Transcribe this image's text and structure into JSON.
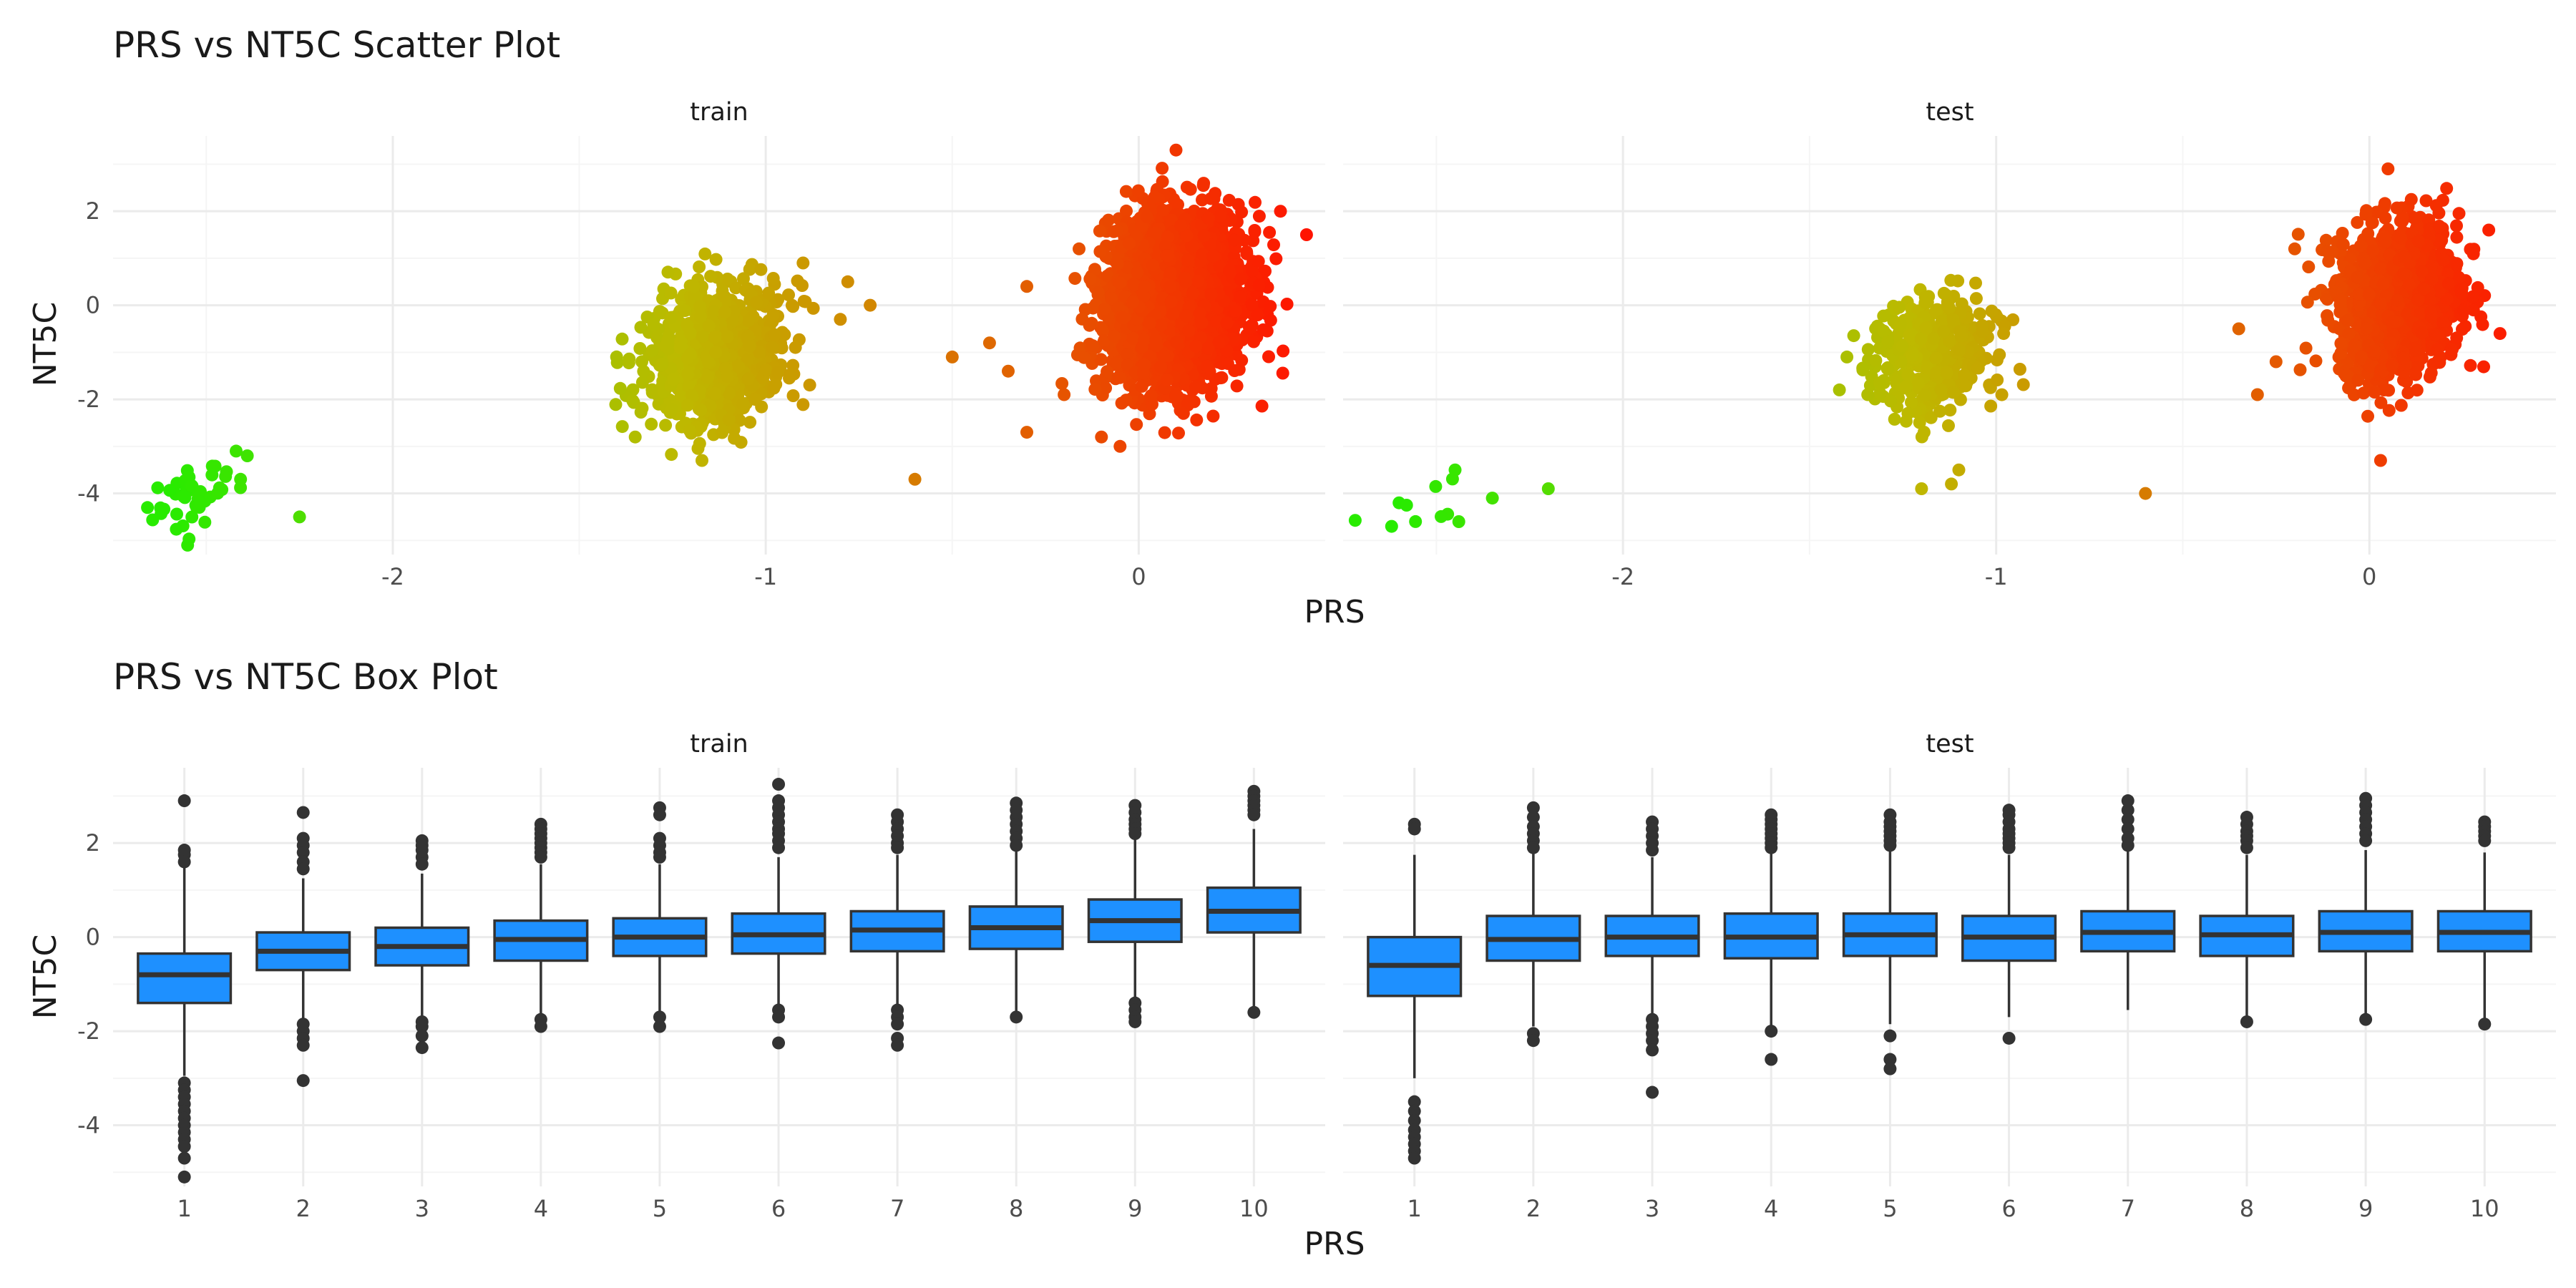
{
  "colors": {
    "background": "#ffffff",
    "grid_major": "#ebebeb",
    "grid_minor": "#f5f5f5",
    "text": "#1a1a1a",
    "tick_text": "#4d4d4d",
    "box_fill": "#1e90ff",
    "box_line": "#333333",
    "gradient_low": "#00ff00",
    "gradient_high": "#ff0000"
  },
  "chart_data": [
    {
      "type": "scatter",
      "title": "PRS vs NT5C Scatter Plot",
      "xlabel": "PRS",
      "ylabel": "NT5C",
      "xlim": [
        -2.75,
        0.5
      ],
      "ylim": [
        -5.3,
        3.6
      ],
      "x_ticks": [
        -2,
        -1,
        0
      ],
      "x_tick_labels": [
        "-2",
        "-1",
        "0"
      ],
      "y_ticks": [
        2,
        0,
        -2,
        -4
      ],
      "y_tick_labels": [
        "2",
        "0",
        "-2",
        "-4"
      ],
      "grid": true,
      "color_encoding": "PRS gradient, green (low) to red (high)",
      "panels": [
        {
          "name": "train",
          "clusters": [
            {
              "center_x": -2.53,
              "center_y": -4.05,
              "spread_x": 0.06,
              "spread_y": 0.32,
              "count": 45,
              "rx": 0.14,
              "ry": 0.95
            },
            {
              "center_x": -1.13,
              "center_y": -1.05,
              "spread_x": 0.09,
              "spread_y": 0.7,
              "count": 900,
              "rx": 0.28,
              "ry": 2.2
            },
            {
              "center_x": 0.1,
              "center_y": 0.15,
              "spread_x": 0.09,
              "spread_y": 0.85,
              "count": 2600,
              "rx": 0.32,
              "ry": 3.1
            }
          ],
          "outliers": [
            {
              "x": -2.25,
              "y": -4.5
            },
            {
              "x": -2.39,
              "y": -3.2
            },
            {
              "x": -2.42,
              "y": -3.1
            },
            {
              "x": -2.55,
              "y": -5.1
            },
            {
              "x": -0.9,
              "y": 0.9
            },
            {
              "x": -0.78,
              "y": 0.5
            },
            {
              "x": -0.72,
              "y": 0.0
            },
            {
              "x": -0.8,
              "y": -0.3
            },
            {
              "x": -0.98,
              "y": -0.2
            },
            {
              "x": -1.35,
              "y": -2.8
            },
            {
              "x": -0.6,
              "y": -3.7
            },
            {
              "x": -0.3,
              "y": -2.7
            },
            {
              "x": -0.4,
              "y": -0.8
            },
            {
              "x": -0.35,
              "y": -1.4
            },
            {
              "x": -0.2,
              "y": -1.9
            },
            {
              "x": -0.5,
              "y": -1.1
            },
            {
              "x": 0.45,
              "y": 1.5
            },
            {
              "x": 0.38,
              "y": 2.0
            },
            {
              "x": 0.1,
              "y": 3.3
            },
            {
              "x": -0.05,
              "y": -3.0
            },
            {
              "x": -0.1,
              "y": -2.8
            },
            {
              "x": 0.12,
              "y": -2.3
            },
            {
              "x": -0.3,
              "y": 0.4
            },
            {
              "x": -0.16,
              "y": 1.2
            }
          ]
        },
        {
          "name": "test",
          "clusters": [
            {
              "center_x": -2.5,
              "center_y": -4.2,
              "spread_x": 0.1,
              "spread_y": 0.35,
              "count": 6,
              "rx": 0.3,
              "ry": 0.8
            },
            {
              "center_x": -1.17,
              "center_y": -1.1,
              "spread_x": 0.08,
              "spread_y": 0.65,
              "count": 420,
              "rx": 0.25,
              "ry": 2.0
            },
            {
              "center_x": 0.08,
              "center_y": 0.15,
              "spread_x": 0.08,
              "spread_y": 0.8,
              "count": 1250,
              "rx": 0.3,
              "ry": 2.7
            }
          ],
          "outliers": [
            {
              "x": -2.62,
              "y": -4.7
            },
            {
              "x": -2.6,
              "y": -4.2
            },
            {
              "x": -2.58,
              "y": -4.25
            },
            {
              "x": -2.45,
              "y": -3.5
            },
            {
              "x": -2.44,
              "y": -4.6
            },
            {
              "x": -2.35,
              "y": -4.1
            },
            {
              "x": -2.2,
              "y": -3.9
            },
            {
              "x": -1.42,
              "y": -1.8
            },
            {
              "x": -1.4,
              "y": -1.1
            },
            {
              "x": -1.2,
              "y": -3.9
            },
            {
              "x": -1.12,
              "y": -3.8
            },
            {
              "x": -1.1,
              "y": -3.5
            },
            {
              "x": -0.98,
              "y": -0.6
            },
            {
              "x": -0.6,
              "y": -4.0
            },
            {
              "x": -0.3,
              "y": -1.9
            },
            {
              "x": -0.25,
              "y": -1.2
            },
            {
              "x": -0.2,
              "y": 1.2
            },
            {
              "x": 0.03,
              "y": -3.3
            },
            {
              "x": 0.05,
              "y": 2.9
            },
            {
              "x": 0.35,
              "y": -0.6
            },
            {
              "x": 0.32,
              "y": 1.6
            },
            {
              "x": -0.35,
              "y": -0.5
            }
          ]
        }
      ]
    },
    {
      "type": "box",
      "title": "PRS vs NT5C Box Plot",
      "xlabel": "PRS",
      "ylabel": "NT5C",
      "categories": [
        "1",
        "2",
        "3",
        "4",
        "5",
        "6",
        "7",
        "8",
        "9",
        "10"
      ],
      "ylim": [
        -5.3,
        3.6
      ],
      "y_ticks": [
        2,
        0,
        -2,
        -4
      ],
      "y_tick_labels": [
        "2",
        "0",
        "-2",
        "-4"
      ],
      "grid": true,
      "panels": [
        {
          "name": "train",
          "boxes": [
            {
              "q1": -1.4,
              "median": -0.8,
              "q3": -0.35,
              "lower": -2.95,
              "upper": 1.7,
              "outliers": [
                2.9,
                1.85,
                1.75,
                1.6,
                -3.1,
                -3.25,
                -3.4,
                -3.55,
                -3.7,
                -3.85,
                -4.0,
                -4.15,
                -4.3,
                -4.45,
                -4.7,
                -5.1
              ]
            },
            {
              "q1": -0.7,
              "median": -0.3,
              "q3": 0.1,
              "lower": -1.75,
              "upper": 1.25,
              "outliers": [
                2.65,
                2.1,
                1.95,
                1.8,
                1.6,
                1.45,
                -1.85,
                -2.0,
                -2.15,
                -2.3,
                -3.05
              ]
            },
            {
              "q1": -0.6,
              "median": -0.2,
              "q3": 0.2,
              "lower": -1.75,
              "upper": 1.35,
              "outliers": [
                2.05,
                1.95,
                1.85,
                1.7,
                1.55,
                -1.8,
                -1.9,
                -2.1,
                -2.35
              ]
            },
            {
              "q1": -0.5,
              "median": -0.05,
              "q3": 0.35,
              "lower": -1.7,
              "upper": 1.55,
              "outliers": [
                2.4,
                2.3,
                2.2,
                2.1,
                2.0,
                1.9,
                1.8,
                1.7,
                -1.75,
                -1.9
              ]
            },
            {
              "q1": -0.4,
              "median": 0.0,
              "q3": 0.4,
              "lower": -1.6,
              "upper": 1.55,
              "outliers": [
                2.75,
                2.6,
                2.1,
                1.95,
                1.8,
                1.7,
                -1.7,
                -1.9
              ]
            },
            {
              "q1": -0.35,
              "median": 0.05,
              "q3": 0.5,
              "lower": -1.45,
              "upper": 1.7,
              "outliers": [
                3.25,
                2.9,
                2.75,
                2.6,
                2.45,
                2.3,
                2.2,
                2.05,
                1.9,
                -1.55,
                -1.7,
                -2.25
              ]
            },
            {
              "q1": -0.3,
              "median": 0.15,
              "q3": 0.55,
              "lower": -1.5,
              "upper": 1.75,
              "outliers": [
                2.6,
                2.45,
                2.3,
                2.15,
                2.0,
                1.9,
                -1.55,
                -1.7,
                -1.85,
                -2.15,
                -2.3
              ]
            },
            {
              "q1": -0.25,
              "median": 0.2,
              "q3": 0.65,
              "lower": -1.65,
              "upper": 1.85,
              "outliers": [
                2.85,
                2.7,
                2.55,
                2.4,
                2.25,
                2.1,
                1.95,
                -1.7
              ]
            },
            {
              "q1": -0.1,
              "median": 0.35,
              "q3": 0.8,
              "lower": -1.4,
              "upper": 2.1,
              "outliers": [
                2.8,
                2.65,
                2.5,
                2.4,
                2.3,
                2.2,
                -1.4,
                -1.55,
                -1.7,
                -1.8
              ]
            },
            {
              "q1": 0.1,
              "median": 0.55,
              "q3": 1.05,
              "lower": -1.5,
              "upper": 2.3,
              "outliers": [
                3.1,
                3.0,
                2.9,
                2.8,
                2.7,
                2.6,
                -1.6
              ]
            }
          ]
        },
        {
          "name": "test",
          "boxes": [
            {
              "q1": -1.25,
              "median": -0.6,
              "q3": 0.0,
              "lower": -3.0,
              "upper": 1.75,
              "outliers": [
                2.4,
                2.3,
                -3.5,
                -3.7,
                -3.9,
                -4.1,
                -4.25,
                -4.4,
                -4.55,
                -4.7
              ]
            },
            {
              "q1": -0.5,
              "median": -0.05,
              "q3": 0.45,
              "lower": -1.9,
              "upper": 1.8,
              "outliers": [
                2.75,
                2.55,
                2.35,
                2.2,
                2.05,
                1.9,
                -2.05,
                -2.2
              ]
            },
            {
              "q1": -0.4,
              "median": 0.0,
              "q3": 0.45,
              "lower": -1.65,
              "upper": 1.7,
              "outliers": [
                2.45,
                2.3,
                2.15,
                2.0,
                1.85,
                -1.75,
                -1.9,
                -2.05,
                -2.2,
                -2.4,
                -3.3
              ]
            },
            {
              "q1": -0.45,
              "median": 0.0,
              "q3": 0.5,
              "lower": -1.9,
              "upper": 1.8,
              "outliers": [
                2.6,
                2.5,
                2.4,
                2.3,
                2.2,
                2.1,
                2.0,
                1.9,
                -2.0,
                -2.6
              ]
            },
            {
              "q1": -0.4,
              "median": 0.05,
              "q3": 0.5,
              "lower": -1.85,
              "upper": 1.85,
              "outliers": [
                2.6,
                2.45,
                2.35,
                2.25,
                2.15,
                2.05,
                1.95,
                -2.1,
                -2.6,
                -2.8
              ]
            },
            {
              "q1": -0.5,
              "median": 0.0,
              "q3": 0.45,
              "lower": -1.7,
              "upper": 1.75,
              "outliers": [
                2.7,
                2.6,
                2.45,
                2.3,
                2.2,
                2.1,
                2.0,
                1.9,
                -2.15
              ]
            },
            {
              "q1": -0.3,
              "median": 0.1,
              "q3": 0.55,
              "lower": -1.55,
              "upper": 1.85,
              "outliers": [
                2.9,
                2.7,
                2.5,
                2.3,
                2.1,
                1.95
              ]
            },
            {
              "q1": -0.4,
              "median": 0.05,
              "q3": 0.45,
              "lower": -1.7,
              "upper": 1.75,
              "outliers": [
                2.55,
                2.4,
                2.25,
                2.15,
                2.05,
                1.9,
                -1.8
              ]
            },
            {
              "q1": -0.3,
              "median": 0.1,
              "q3": 0.55,
              "lower": -1.7,
              "upper": 1.85,
              "outliers": [
                2.95,
                2.8,
                2.65,
                2.5,
                2.35,
                2.2,
                2.05,
                -1.75
              ]
            },
            {
              "q1": -0.3,
              "median": 0.1,
              "q3": 0.55,
              "lower": -1.75,
              "upper": 1.8,
              "outliers": [
                2.45,
                2.35,
                2.25,
                2.15,
                2.05,
                -1.85
              ]
            }
          ]
        }
      ]
    }
  ]
}
